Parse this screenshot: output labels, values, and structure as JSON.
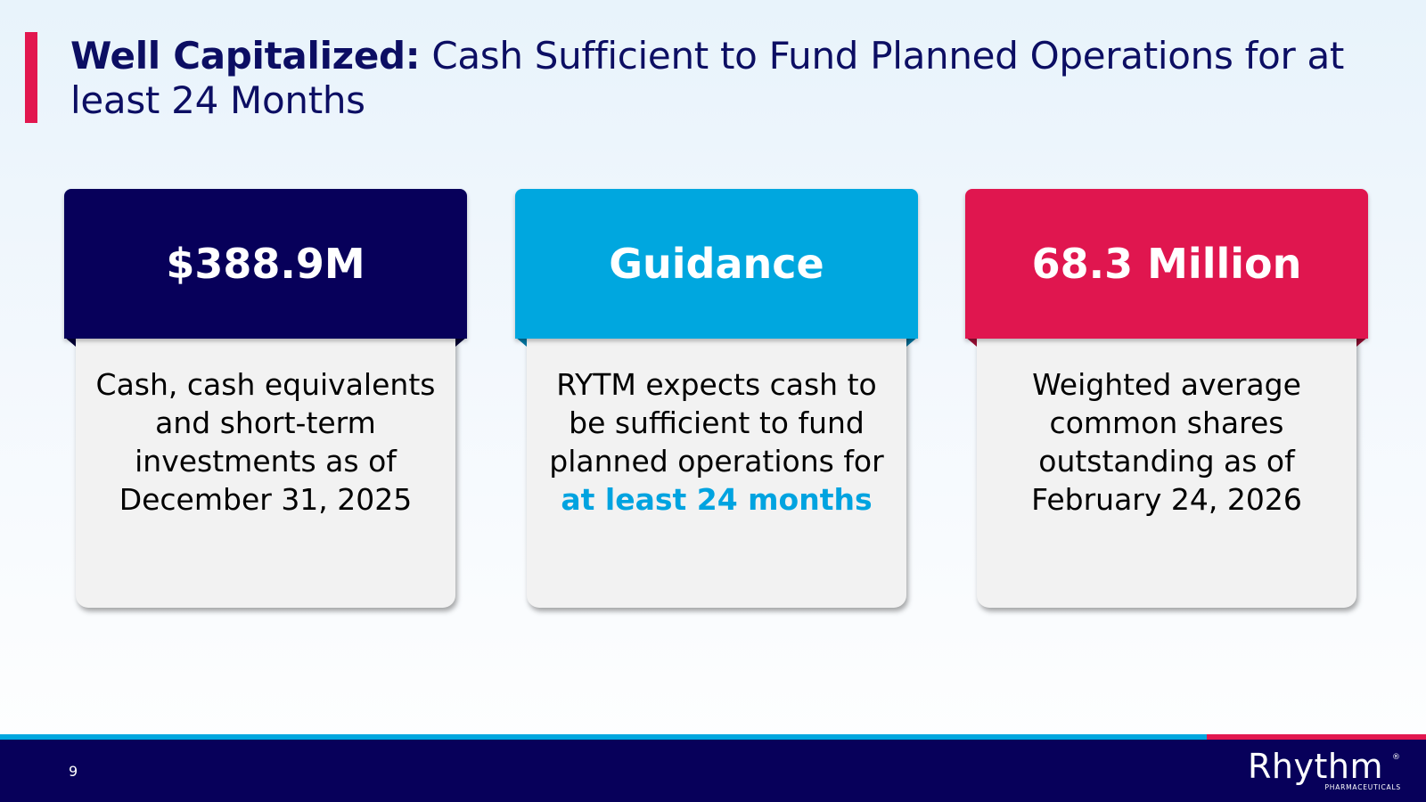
{
  "slide": {
    "title_bold": "Well Capitalized:",
    "title_rest": " Cash Sufficient to Fund Planned Operations for at least 24 Months",
    "page_number": "9"
  },
  "cards": [
    {
      "header": "$388.9M",
      "text": "Cash, cash equivalents and short-term investments as of December 31, 2025",
      "color": "#07005a"
    },
    {
      "header": "Guidance",
      "text_before": "RYTM expects cash to be sufficient to fund planned operations for ",
      "text_highlight": "at least 24 months",
      "color": "#00a7df",
      "highlight_color": "#00a3e0"
    },
    {
      "header": "68.3 Million",
      "text": "Weighted average common shares outstanding as of February 24, 2026",
      "color": "#e0164f"
    }
  ],
  "logo": {
    "name": "Rhythm",
    "registered": "®",
    "subtitle": "PHARMACEUTICALS"
  },
  "colors": {
    "navy": "#07005a",
    "blue": "#00a7df",
    "red": "#e2174f"
  }
}
